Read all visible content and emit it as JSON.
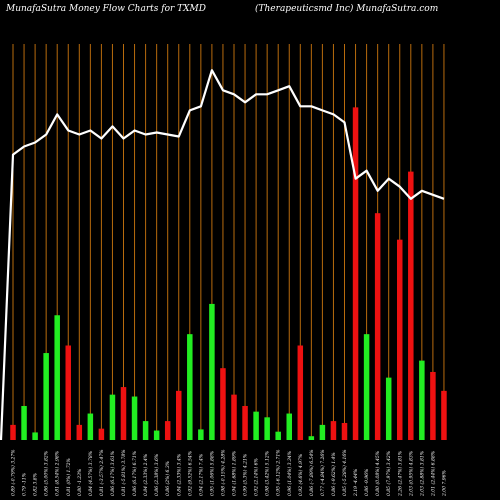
{
  "chart_data": {
    "type": "bar+line",
    "title_left": "MunafaSutra  Money Flow  Charts for TXMD",
    "title_right": "(Therapeuticsmd Inc) MunafaSutra.com",
    "colors": {
      "background": "#000000",
      "gridline": "#b86b0d",
      "up_bar": "#22ee22",
      "down_bar": "#ee1111",
      "line": "#ffffff",
      "text": "#ffffff"
    },
    "x_labels": [
      "0.89 (-0.79%) 3.27%",
      "0.79 -11%",
      "0.82 3.8%",
      "0.86 (5.00%) 3.82%",
      "0.81 (8.54%) 2.98%",
      "0.81 (0%) 1.72%",
      "0.80 -1.23%",
      "0.84 (4.57%) 3.78%",
      "0.81 (-3.57%) 2.47%",
      "0.86 (6.17%) 3.61%",
      "0.81 (-5.81%) 3.78%",
      "0.86 (6.17%) 6.71%",
      "0.84 (2.33%) 2.4%",
      "0.86 (2.38%) 3.6%",
      "0.86 (2%) 6.3%",
      "0.84 (2.33%) 3.4%",
      "0.92 (9.52%) 6.54%",
      "0.94 (2.17%) 7.4%",
      "0.95 (1.06%) 5.88%",
      "0.98 (-0.15%) 4.28%",
      "0.94 (1.68%) 1.89%",
      "0.99 (5.3%) 4.21%",
      "0.92 (2.14%) 6%",
      "0.98 (3.42%) 5.12%",
      "0.95 (-6.12%) 2.71%",
      "0.96 (1.04%) 3.34%",
      "0.92 (4.6%) 4.97%",
      "0.86 (-7.89%) 6.54%",
      "0.77 (-4.84%) 7.26%",
      "0.86 (-9.62%) 1.4%",
      "0.85 (-5.28%) 4.16%",
      "2.19 -4.44%",
      "0.86 -9.96%",
      "0.80 (0.08%) 4.45%",
      "0.85 (7.97%) 3.42%",
      "2.26 (2.47%) 3.81%",
      "2.03 (0.95%) 4.83%",
      "2.03 (2.88%) 3.81%",
      "2.01 (2.44%) 6.88%",
      "2.00 7.96%"
    ],
    "bars": [
      {
        "dir": "down",
        "value": 4
      },
      {
        "dir": "up",
        "value": 9
      },
      {
        "dir": "up",
        "value": 2
      },
      {
        "dir": "up",
        "value": 23
      },
      {
        "dir": "up",
        "value": 33
      },
      {
        "dir": "down",
        "value": 25
      },
      {
        "dir": "down",
        "value": 4
      },
      {
        "dir": "up",
        "value": 7
      },
      {
        "dir": "down",
        "value": 3
      },
      {
        "dir": "up",
        "value": 12
      },
      {
        "dir": "down",
        "value": 14
      },
      {
        "dir": "up",
        "value": 11.5
      },
      {
        "dir": "up",
        "value": 5
      },
      {
        "dir": "up",
        "value": 2.5
      },
      {
        "dir": "down",
        "value": 5
      },
      {
        "dir": "down",
        "value": 13
      },
      {
        "dir": "up",
        "value": 28
      },
      {
        "dir": "up",
        "value": 2.8
      },
      {
        "dir": "up",
        "value": 36
      },
      {
        "dir": "down",
        "value": 19
      },
      {
        "dir": "down",
        "value": 12
      },
      {
        "dir": "down",
        "value": 9
      },
      {
        "dir": "up",
        "value": 7.5
      },
      {
        "dir": "up",
        "value": 6
      },
      {
        "dir": "up",
        "value": 2.2
      },
      {
        "dir": "up",
        "value": 7
      },
      {
        "dir": "down",
        "value": 25
      },
      {
        "dir": "up",
        "value": 1
      },
      {
        "dir": "up",
        "value": 4
      },
      {
        "dir": "down",
        "value": 5
      },
      {
        "dir": "down",
        "value": 4.5
      },
      {
        "dir": "down",
        "value": 88
      },
      {
        "dir": "up",
        "value": 28
      },
      {
        "dir": "down",
        "value": 60
      },
      {
        "dir": "up",
        "value": 16.5
      },
      {
        "dir": "down",
        "value": 53
      },
      {
        "dir": "down",
        "value": 71
      },
      {
        "dir": "up",
        "value": 21
      },
      {
        "dir": "down",
        "value": 18
      },
      {
        "dir": "down",
        "value": 13
      }
    ],
    "line_values": [
      0,
      71,
      73,
      74,
      76,
      81,
      77,
      76,
      77,
      75,
      78,
      75,
      77,
      76,
      76.5,
      76,
      75.5,
      82,
      83,
      92,
      87,
      86,
      84,
      86,
      86,
      87,
      88,
      83,
      83,
      82,
      81,
      79,
      65,
      67,
      62,
      65,
      63,
      60,
      62,
      61,
      60
    ],
    "bar_max": 100,
    "line_max": 100
  }
}
